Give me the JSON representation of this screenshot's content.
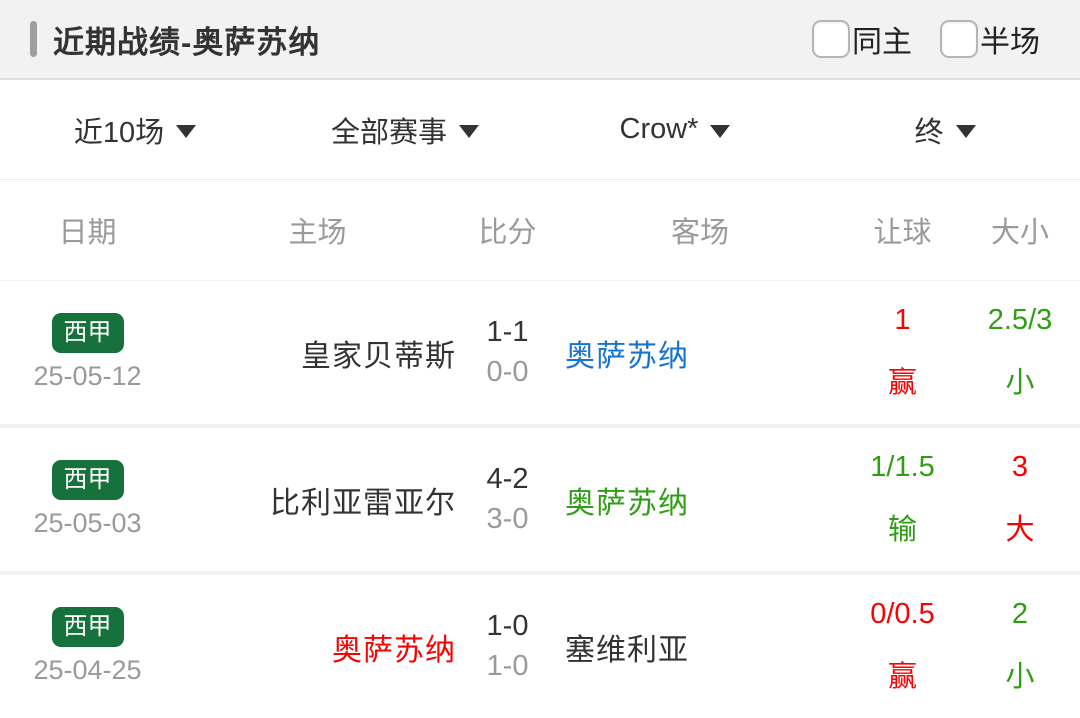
{
  "header": {
    "title": "近期战绩-奥萨苏纳",
    "checkboxes": [
      {
        "label": "同主",
        "checked": false
      },
      {
        "label": "半场",
        "checked": false
      }
    ]
  },
  "filters": [
    {
      "label": "近10场"
    },
    {
      "label": "全部赛事"
    },
    {
      "label": "Crow*"
    },
    {
      "label": "终"
    }
  ],
  "table": {
    "columns": [
      "日期",
      "主场",
      "比分",
      "客场",
      "让球",
      "大小"
    ],
    "rows": [
      {
        "league": "西甲",
        "date": "25-05-12",
        "home": "皇家贝蒂斯",
        "home_color": "dark",
        "score_full": "1-1",
        "score_half": "0-0",
        "away": "奥萨苏纳",
        "away_color": "blue",
        "handicap": "1",
        "handicap_result": "赢",
        "handicap_color": "red",
        "ou": "2.5/3",
        "ou_result": "小",
        "ou_color": "green"
      },
      {
        "league": "西甲",
        "date": "25-05-03",
        "home": "比利亚雷亚尔",
        "home_color": "dark",
        "score_full": "4-2",
        "score_half": "3-0",
        "away": "奥萨苏纳",
        "away_color": "green",
        "handicap": "1/1.5",
        "handicap_result": "输",
        "handicap_color": "green",
        "ou": "3",
        "ou_result": "大",
        "ou_color": "red"
      },
      {
        "league": "西甲",
        "date": "25-04-25",
        "home": "奥萨苏纳",
        "home_color": "red",
        "score_full": "1-0",
        "score_half": "1-0",
        "away": "塞维利亚",
        "away_color": "dark",
        "handicap": "0/0.5",
        "handicap_result": "赢",
        "handicap_color": "red",
        "ou": "2",
        "ou_result": "小",
        "ou_color": "green"
      }
    ]
  },
  "colors": {
    "accent_green_badge": "#17713c",
    "win_red": "#fb0000",
    "loss_green": "#2f9e14",
    "draw_blue": "#1673d1",
    "muted_gray": "#9a9a9a",
    "header_bg": "#f2f2f2"
  }
}
